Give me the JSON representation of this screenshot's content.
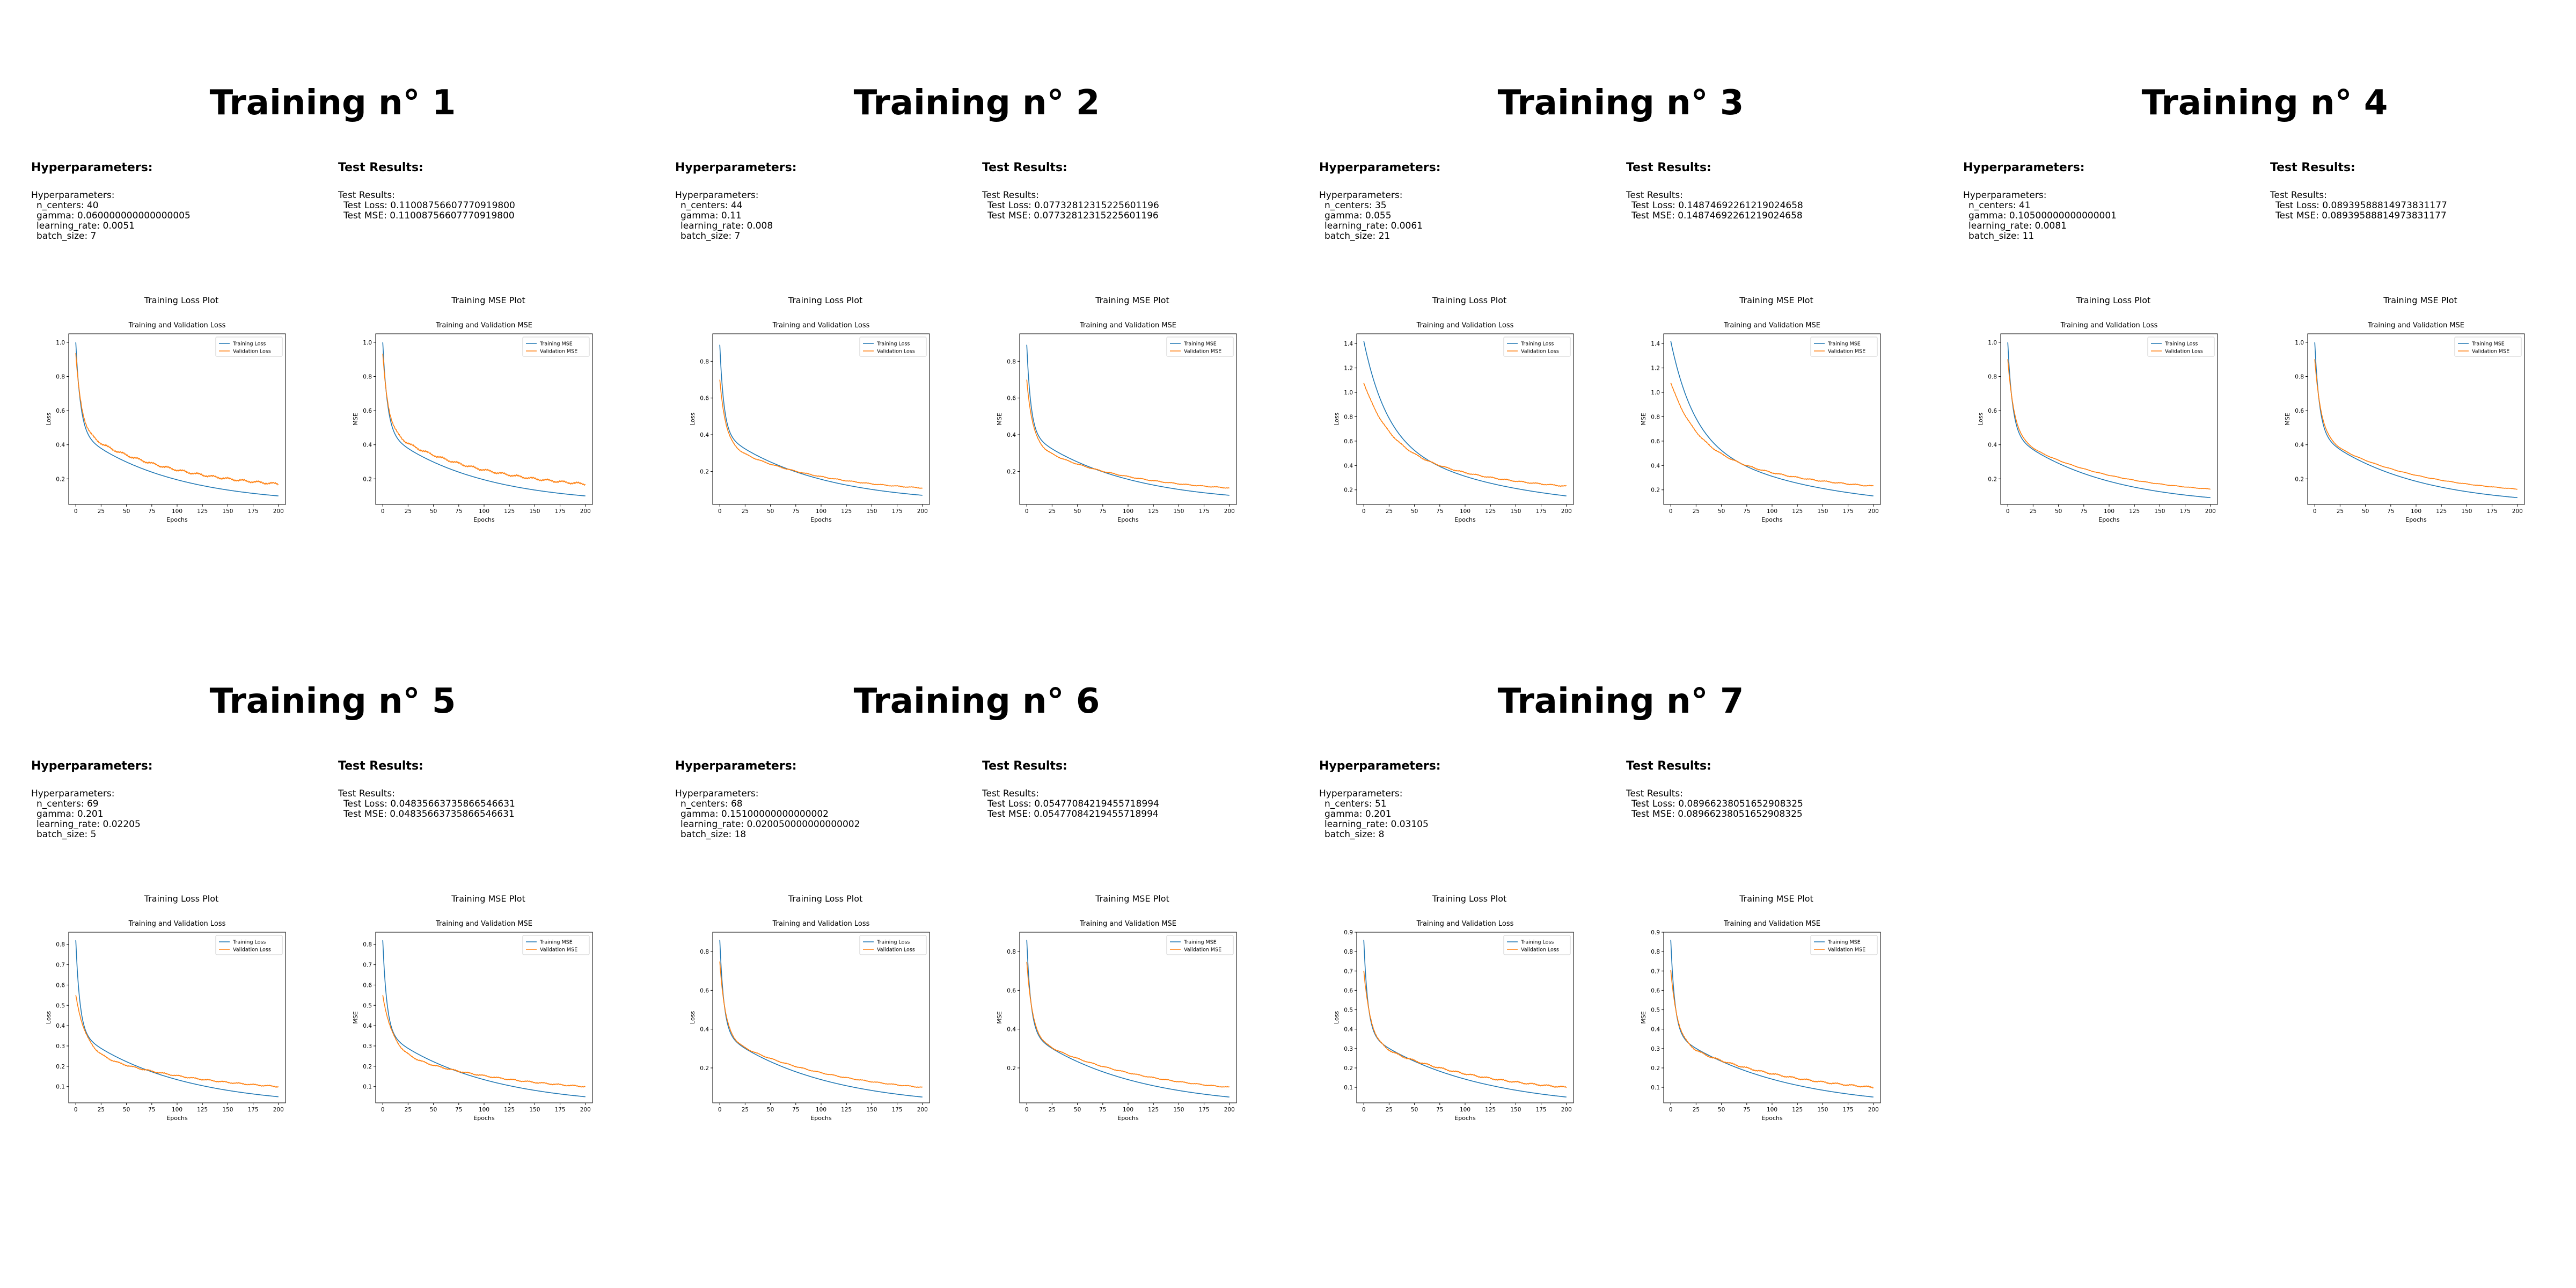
{
  "labels": {
    "hyper_heading": "Hyperparameters:",
    "hyper_prefix": "Hyperparameters:",
    "test_heading": "Test Results:",
    "test_prefix": "Test Results:",
    "loss_plot_heading": "Training Loss Plot",
    "mse_plot_heading": "Training MSE Plot"
  },
  "trainings": [
    {
      "title": "Training n° 1",
      "hyperparameters": [
        "n_centers: 40",
        "gamma: 0.060000000000000005",
        "learning_rate: 0.0051",
        "batch_size: 7"
      ],
      "test_results": [
        "Test Loss: 0.11008756607770919800",
        "Test MSE: 0.11008756607770919800"
      ]
    },
    {
      "title": "Training n° 2",
      "hyperparameters": [
        "n_centers: 44",
        "gamma: 0.11",
        "learning_rate: 0.008",
        "batch_size: 7"
      ],
      "test_results": [
        "Test Loss: 0.07732812315225601196",
        "Test MSE: 0.07732812315225601196"
      ]
    },
    {
      "title": "Training n° 3",
      "hyperparameters": [
        "n_centers: 35",
        "gamma: 0.055",
        "learning_rate: 0.0061",
        "batch_size: 21"
      ],
      "test_results": [
        "Test Loss: 0.14874692261219024658",
        "Test MSE: 0.14874692261219024658"
      ]
    },
    {
      "title": "Training n° 4",
      "hyperparameters": [
        "n_centers: 41",
        "gamma: 0.10500000000000001",
        "learning_rate: 0.0081",
        "batch_size: 11"
      ],
      "test_results": [
        "Test Loss: 0.08939588814973831177",
        "Test MSE: 0.08939588814973831177"
      ]
    },
    {
      "title": "Training n° 5",
      "hyperparameters": [
        "n_centers: 69",
        "gamma: 0.201",
        "learning_rate: 0.02205",
        "batch_size: 5"
      ],
      "test_results": [
        "Test Loss: 0.04835663735866546631",
        "Test MSE: 0.04835663735866546631"
      ]
    },
    {
      "title": "Training n° 6",
      "hyperparameters": [
        "n_centers: 68",
        "gamma: 0.15100000000000002",
        "learning_rate: 0.020050000000000002",
        "batch_size: 18"
      ],
      "test_results": [
        "Test Loss: 0.05477084219455718994",
        "Test MSE: 0.05477084219455718994"
      ]
    },
    {
      "title": "Training n° 7",
      "hyperparameters": [
        "n_centers: 51",
        "gamma: 0.201",
        "learning_rate: 0.03105",
        "batch_size: 8"
      ],
      "test_results": [
        "Test Loss: 0.08966238051652908325",
        "Test MSE: 0.08966238051652908325"
      ]
    }
  ],
  "chart_data": [
    {
      "id": "t1-loss",
      "type": "line",
      "title": "Training and Validation Loss",
      "xlabel": "Epochs",
      "ylabel": "Loss",
      "xlim": [
        -7,
        207
      ],
      "ylim": [
        0.05,
        1.05
      ],
      "xticks": [
        0,
        25,
        50,
        75,
        100,
        125,
        150,
        175,
        200
      ],
      "yticks": [
        0.2,
        0.4,
        0.6,
        0.8,
        1.0
      ],
      "series": [
        {
          "name": "Training Loss",
          "color": "#1f77b4",
          "start": 1.0,
          "end": 0.1,
          "k": 0.22,
          "tail": 0.12,
          "noise": 0.0
        },
        {
          "name": "Validation Loss",
          "color": "#ff7f0e",
          "start": 0.93,
          "end": 0.17,
          "k": 0.18,
          "tail": 0.12,
          "noise": 0.008
        }
      ]
    },
    {
      "id": "t1-mse",
      "type": "line",
      "title": "Training and Validation MSE",
      "xlabel": "Epochs",
      "ylabel": "MSE",
      "xlim": [
        -7,
        207
      ],
      "ylim": [
        0.05,
        1.05
      ],
      "xticks": [
        0,
        25,
        50,
        75,
        100,
        125,
        150,
        175,
        200
      ],
      "yticks": [
        0.2,
        0.4,
        0.6,
        0.8,
        1.0
      ],
      "series": [
        {
          "name": "Training MSE",
          "color": "#1f77b4",
          "start": 1.0,
          "end": 0.1,
          "k": 0.22,
          "tail": 0.12,
          "noise": 0.0
        },
        {
          "name": "Validation MSE",
          "color": "#ff7f0e",
          "start": 0.93,
          "end": 0.17,
          "k": 0.18,
          "tail": 0.12,
          "noise": 0.008
        }
      ]
    },
    {
      "id": "t2-loss",
      "type": "line",
      "title": "Training and Validation Loss",
      "xlabel": "Epochs",
      "ylabel": "Loss",
      "xlim": [
        -7,
        207
      ],
      "ylim": [
        0.02,
        0.95
      ],
      "xticks": [
        0,
        25,
        50,
        75,
        100,
        125,
        150,
        175,
        200
      ],
      "yticks": [
        0.2,
        0.4,
        0.6,
        0.8
      ],
      "series": [
        {
          "name": "Training Loss",
          "color": "#1f77b4",
          "start": 0.89,
          "end": 0.07,
          "k": 0.25,
          "tail": 0.1,
          "noise": 0.0
        },
        {
          "name": "Validation Loss",
          "color": "#ff7f0e",
          "start": 0.7,
          "end": 0.11,
          "k": 0.17,
          "tail": 0.16,
          "noise": 0.003
        }
      ]
    },
    {
      "id": "t2-mse",
      "type": "line",
      "title": "Training and Validation MSE",
      "xlabel": "Epochs",
      "ylabel": "MSE",
      "xlim": [
        -7,
        207
      ],
      "ylim": [
        0.02,
        0.95
      ],
      "xticks": [
        0,
        25,
        50,
        75,
        100,
        125,
        150,
        175,
        200
      ],
      "yticks": [
        0.2,
        0.4,
        0.6,
        0.8
      ],
      "series": [
        {
          "name": "Training MSE",
          "color": "#1f77b4",
          "start": 0.89,
          "end": 0.07,
          "k": 0.25,
          "tail": 0.1,
          "noise": 0.0
        },
        {
          "name": "Validation MSE",
          "color": "#ff7f0e",
          "start": 0.7,
          "end": 0.11,
          "k": 0.17,
          "tail": 0.16,
          "noise": 0.003
        }
      ]
    },
    {
      "id": "t3-loss",
      "type": "line",
      "title": "Training and Validation Loss",
      "xlabel": "Epochs",
      "ylabel": "Loss",
      "xlim": [
        -7,
        207
      ],
      "ylim": [
        0.08,
        1.48
      ],
      "xticks": [
        0,
        25,
        50,
        75,
        100,
        125,
        150,
        175,
        200
      ],
      "yticks": [
        0.2,
        0.4,
        0.6,
        0.8,
        1.0,
        1.2,
        1.4
      ],
      "series": [
        {
          "name": "Training Loss",
          "color": "#1f77b4",
          "start": 1.42,
          "end": 0.15,
          "k": 0.045,
          "tail": 0.02,
          "noise": 0.0
        },
        {
          "name": "Validation Loss",
          "color": "#ff7f0e",
          "start": 1.08,
          "end": 0.23,
          "k": 0.04,
          "tail": 0.02,
          "noise": 0.006
        }
      ]
    },
    {
      "id": "t3-mse",
      "type": "line",
      "title": "Training and Validation MSE",
      "xlabel": "Epochs",
      "ylabel": "MSE",
      "xlim": [
        -7,
        207
      ],
      "ylim": [
        0.08,
        1.48
      ],
      "xticks": [
        0,
        25,
        50,
        75,
        100,
        125,
        150,
        175,
        200
      ],
      "yticks": [
        0.2,
        0.4,
        0.6,
        0.8,
        1.0,
        1.2,
        1.4
      ],
      "series": [
        {
          "name": "Training MSE",
          "color": "#1f77b4",
          "start": 1.42,
          "end": 0.15,
          "k": 0.045,
          "tail": 0.02,
          "noise": 0.0
        },
        {
          "name": "Validation MSE",
          "color": "#ff7f0e",
          "start": 1.08,
          "end": 0.23,
          "k": 0.04,
          "tail": 0.02,
          "noise": 0.006
        }
      ]
    },
    {
      "id": "t4-loss",
      "type": "line",
      "title": "Training and Validation Loss",
      "xlabel": "Epochs",
      "ylabel": "Loss",
      "xlim": [
        -7,
        207
      ],
      "ylim": [
        0.05,
        1.05
      ],
      "xticks": [
        0,
        25,
        50,
        75,
        100,
        125,
        150,
        175,
        200
      ],
      "yticks": [
        0.2,
        0.4,
        0.6,
        0.8,
        1.0
      ],
      "series": [
        {
          "name": "Training Loss",
          "color": "#1f77b4",
          "start": 1.0,
          "end": 0.09,
          "k": 0.22,
          "tail": 0.12,
          "noise": 0.0
        },
        {
          "name": "Validation Loss",
          "color": "#ff7f0e",
          "start": 0.9,
          "end": 0.14,
          "k": 0.16,
          "tail": 0.15,
          "noise": 0.002
        }
      ]
    },
    {
      "id": "t4-mse",
      "type": "line",
      "title": "Training and Validation MSE",
      "xlabel": "Epochs",
      "ylabel": "MSE",
      "xlim": [
        -7,
        207
      ],
      "ylim": [
        0.05,
        1.05
      ],
      "xticks": [
        0,
        25,
        50,
        75,
        100,
        125,
        150,
        175,
        200
      ],
      "yticks": [
        0.2,
        0.4,
        0.6,
        0.8,
        1.0
      ],
      "series": [
        {
          "name": "Training MSE",
          "color": "#1f77b4",
          "start": 1.0,
          "end": 0.09,
          "k": 0.22,
          "tail": 0.12,
          "noise": 0.0
        },
        {
          "name": "Validation MSE",
          "color": "#ff7f0e",
          "start": 0.9,
          "end": 0.14,
          "k": 0.16,
          "tail": 0.15,
          "noise": 0.002
        }
      ]
    },
    {
      "id": "t5-loss",
      "type": "line",
      "title": "Training and Validation Loss",
      "xlabel": "Epochs",
      "ylabel": "Loss",
      "xlim": [
        -7,
        207
      ],
      "ylim": [
        0.02,
        0.86
      ],
      "xticks": [
        0,
        25,
        50,
        75,
        100,
        125,
        150,
        175,
        200
      ],
      "yticks": [
        0.1,
        0.2,
        0.3,
        0.4,
        0.5,
        0.6,
        0.7,
        0.8
      ],
      "series": [
        {
          "name": "Training Loss",
          "color": "#1f77b4",
          "start": 0.82,
          "end": 0.05,
          "k": 0.25,
          "tail": 0.08,
          "noise": 0.0
        },
        {
          "name": "Validation Loss",
          "color": "#ff7f0e",
          "start": 0.55,
          "end": 0.1,
          "k": 0.1,
          "tail": 0.04,
          "noise": 0.004
        }
      ]
    },
    {
      "id": "t5-mse",
      "type": "line",
      "title": "Training and Validation MSE",
      "xlabel": "Epochs",
      "ylabel": "MSE",
      "xlim": [
        -7,
        207
      ],
      "ylim": [
        0.02,
        0.86
      ],
      "xticks": [
        0,
        25,
        50,
        75,
        100,
        125,
        150,
        175,
        200
      ],
      "yticks": [
        0.1,
        0.2,
        0.3,
        0.4,
        0.5,
        0.6,
        0.7,
        0.8
      ],
      "series": [
        {
          "name": "Training MSE",
          "color": "#1f77b4",
          "start": 0.82,
          "end": 0.05,
          "k": 0.25,
          "tail": 0.08,
          "noise": 0.0
        },
        {
          "name": "Validation MSE",
          "color": "#ff7f0e",
          "start": 0.55,
          "end": 0.1,
          "k": 0.1,
          "tail": 0.04,
          "noise": 0.004
        }
      ]
    },
    {
      "id": "t6-loss",
      "type": "line",
      "title": "Training and Validation Loss",
      "xlabel": "Epochs",
      "ylabel": "Loss",
      "xlim": [
        -7,
        207
      ],
      "ylim": [
        0.02,
        0.9
      ],
      "xticks": [
        0,
        25,
        50,
        75,
        100,
        125,
        150,
        175,
        200
      ],
      "yticks": [
        0.2,
        0.4,
        0.6,
        0.8
      ],
      "series": [
        {
          "name": "Training Loss",
          "color": "#1f77b4",
          "start": 0.86,
          "end": 0.05,
          "k": 0.25,
          "tail": 0.07,
          "noise": 0.0
        },
        {
          "name": "Validation Loss",
          "color": "#ff7f0e",
          "start": 0.75,
          "end": 0.1,
          "k": 0.18,
          "tail": 0.05,
          "noise": 0.003
        }
      ]
    },
    {
      "id": "t6-mse",
      "type": "line",
      "title": "Training and Validation MSE",
      "xlabel": "Epochs",
      "ylabel": "MSE",
      "xlim": [
        -7,
        207
      ],
      "ylim": [
        0.02,
        0.9
      ],
      "xticks": [
        0,
        25,
        50,
        75,
        100,
        125,
        150,
        175,
        200
      ],
      "yticks": [
        0.2,
        0.4,
        0.6,
        0.8
      ],
      "series": [
        {
          "name": "Training MSE",
          "color": "#1f77b4",
          "start": 0.86,
          "end": 0.05,
          "k": 0.25,
          "tail": 0.07,
          "noise": 0.0
        },
        {
          "name": "Validation MSE",
          "color": "#ff7f0e",
          "start": 0.75,
          "end": 0.1,
          "k": 0.18,
          "tail": 0.05,
          "noise": 0.003
        }
      ]
    },
    {
      "id": "t7-loss",
      "type": "line",
      "title": "Training and Validation Loss",
      "xlabel": "Epochs",
      "ylabel": "Loss",
      "xlim": [
        -7,
        207
      ],
      "ylim": [
        0.02,
        0.9
      ],
      "xticks": [
        0,
        25,
        50,
        75,
        100,
        125,
        150,
        175,
        200
      ],
      "yticks": [
        0.1,
        0.2,
        0.3,
        0.4,
        0.5,
        0.6,
        0.7,
        0.8,
        0.9
      ],
      "series": [
        {
          "name": "Training Loss",
          "color": "#1f77b4",
          "start": 0.86,
          "end": 0.05,
          "k": 0.25,
          "tail": 0.05,
          "noise": 0.0
        },
        {
          "name": "Validation Loss",
          "color": "#ff7f0e",
          "start": 0.7,
          "end": 0.1,
          "k": 0.15,
          "tail": 0.05,
          "noise": 0.005
        }
      ]
    },
    {
      "id": "t7-mse",
      "type": "line",
      "title": "Training and Validation MSE",
      "xlabel": "Epochs",
      "ylabel": "MSE",
      "xlim": [
        -7,
        207
      ],
      "ylim": [
        0.02,
        0.9
      ],
      "xticks": [
        0,
        25,
        50,
        75,
        100,
        125,
        150,
        175,
        200
      ],
      "yticks": [
        0.1,
        0.2,
        0.3,
        0.4,
        0.5,
        0.6,
        0.7,
        0.8,
        0.9
      ],
      "series": [
        {
          "name": "Training MSE",
          "color": "#1f77b4",
          "start": 0.86,
          "end": 0.05,
          "k": 0.25,
          "tail": 0.05,
          "noise": 0.0
        },
        {
          "name": "Validation MSE",
          "color": "#ff7f0e",
          "start": 0.7,
          "end": 0.1,
          "k": 0.15,
          "tail": 0.05,
          "noise": 0.005
        }
      ]
    }
  ]
}
